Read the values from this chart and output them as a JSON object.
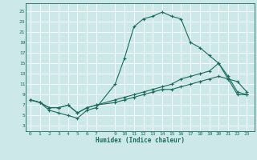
{
  "xlabel": "Humidex (Indice chaleur)",
  "bg_color": "#cce8e8",
  "line_color": "#1a6b5a",
  "grid_color": "#ffffff",
  "xticks": [
    0,
    1,
    2,
    3,
    4,
    5,
    6,
    7,
    9,
    10,
    11,
    12,
    13,
    14,
    15,
    16,
    17,
    18,
    19,
    20,
    21,
    22,
    23
  ],
  "yticks": [
    3,
    5,
    7,
    9,
    11,
    13,
    15,
    17,
    19,
    21,
    23,
    25
  ],
  "xlim": [
    -0.5,
    23.8
  ],
  "ylim": [
    2.0,
    26.5
  ],
  "line1_x": [
    0,
    1,
    2,
    3,
    4,
    5,
    6,
    7,
    9,
    10,
    11,
    12,
    13,
    14,
    15,
    16,
    17,
    18,
    19,
    20,
    21,
    22,
    23
  ],
  "line1_y": [
    8,
    7.5,
    6,
    5.5,
    5,
    4.5,
    6,
    6.5,
    11,
    16,
    22,
    23.5,
    24,
    24.8,
    24,
    23.5,
    19,
    18,
    16.5,
    15,
    12,
    11.5,
    9.5
  ],
  "line2_x": [
    0,
    1,
    2,
    3,
    4,
    5,
    6,
    7,
    9,
    10,
    11,
    12,
    13,
    14,
    15,
    16,
    17,
    18,
    19,
    20,
    21,
    22,
    23
  ],
  "line2_y": [
    8,
    7.5,
    6.5,
    6.5,
    7,
    5.5,
    6.5,
    7,
    8,
    8.5,
    9,
    9.5,
    10,
    10.5,
    11,
    12,
    12.5,
    13,
    13.5,
    15,
    12.5,
    9.5,
    9
  ],
  "line3_x": [
    0,
    1,
    2,
    3,
    4,
    5,
    6,
    7,
    9,
    10,
    11,
    12,
    13,
    14,
    15,
    16,
    17,
    18,
    19,
    20,
    21,
    22,
    23
  ],
  "line3_y": [
    8,
    7.5,
    6.5,
    6.5,
    7,
    5.5,
    6.5,
    7,
    7.5,
    8,
    8.5,
    9,
    9.5,
    10,
    10,
    10.5,
    11,
    11.5,
    12,
    12.5,
    12,
    9,
    9
  ]
}
